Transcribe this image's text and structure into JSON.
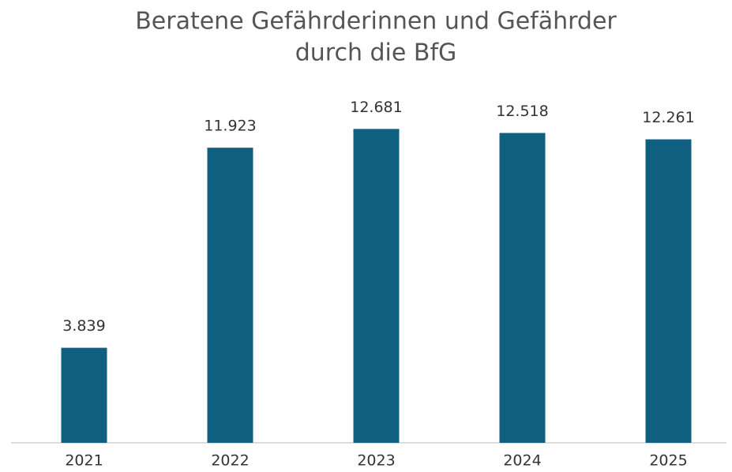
{
  "chart_data": {
    "type": "bar",
    "title": [
      "Beratene Gefährderinnen und Gefährder",
      "durch die BfG"
    ],
    "categories": [
      "2021",
      "2022",
      "2023",
      "2024",
      "2025"
    ],
    "values": [
      3839,
      11923,
      12681,
      12518,
      12261
    ],
    "value_labels": [
      "3.839",
      "11.923",
      "12.681",
      "12.518",
      "12.261"
    ],
    "color": "#0f5f80",
    "ylim": [
      0,
      14000
    ]
  }
}
